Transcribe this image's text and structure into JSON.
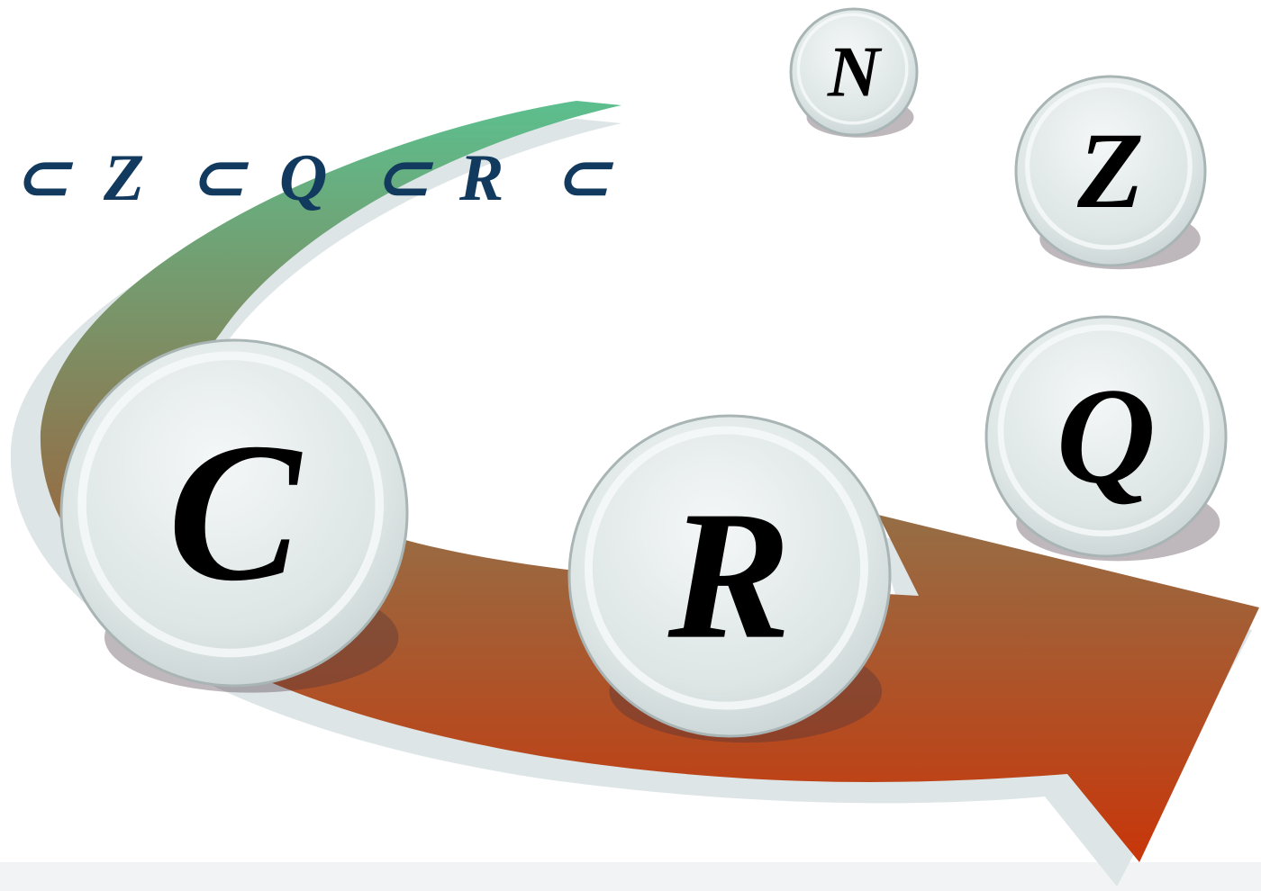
{
  "formula": {
    "parts": [
      "⊂",
      "Z",
      "⊂",
      "Q",
      "⊂",
      "R",
      "⊂"
    ]
  },
  "balls": [
    {
      "label": "N"
    },
    {
      "label": "Z"
    },
    {
      "label": "Q"
    },
    {
      "label": "R"
    },
    {
      "label": "C"
    }
  ]
}
